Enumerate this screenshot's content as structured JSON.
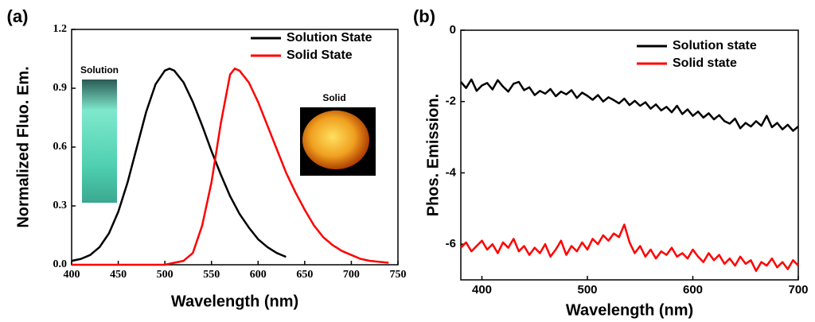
{
  "chart_data": [
    {
      "type": "line",
      "panel_label": "(a)",
      "x_label": "Wavelength (nm)",
      "y_label": "Normalized Fluo. Em.",
      "xlim": [
        400,
        750
      ],
      "xticks": [
        400,
        450,
        500,
        550,
        600,
        650,
        700,
        750
      ],
      "ylim": [
        0,
        1.2
      ],
      "yticks": [
        {
          "value": 0,
          "label": "0.0"
        },
        0.3,
        0.6,
        0.9,
        1.2
      ],
      "grid": false,
      "legend": "upper right",
      "annotations": [
        "Solution",
        "Solid"
      ],
      "series": [
        {
          "name": "Solution State",
          "color": "#000000",
          "x": [
            400,
            410,
            420,
            430,
            440,
            450,
            460,
            470,
            480,
            490,
            500,
            505,
            510,
            520,
            530,
            540,
            550,
            560,
            570,
            580,
            590,
            600,
            610,
            620,
            630
          ],
          "values": [
            0.02,
            0.03,
            0.05,
            0.09,
            0.16,
            0.27,
            0.42,
            0.6,
            0.78,
            0.92,
            0.99,
            1.0,
            0.99,
            0.93,
            0.83,
            0.71,
            0.58,
            0.46,
            0.35,
            0.26,
            0.19,
            0.13,
            0.09,
            0.06,
            0.04
          ]
        },
        {
          "name": "Solid State",
          "color": "#ff0000",
          "x": [
            400,
            420,
            440,
            460,
            480,
            500,
            510,
            520,
            530,
            540,
            550,
            560,
            570,
            575,
            580,
            590,
            600,
            610,
            620,
            630,
            640,
            650,
            660,
            670,
            680,
            690,
            700,
            710,
            720,
            740
          ],
          "values": [
            0,
            0,
            0,
            0,
            0,
            0,
            0.01,
            0.02,
            0.06,
            0.2,
            0.42,
            0.72,
            0.97,
            1.0,
            0.99,
            0.93,
            0.83,
            0.71,
            0.59,
            0.47,
            0.37,
            0.28,
            0.2,
            0.14,
            0.1,
            0.07,
            0.05,
            0.03,
            0.02,
            0.01
          ]
        }
      ]
    },
    {
      "type": "line",
      "panel_label": "(b)",
      "x_label": "Wavelength (nm)",
      "y_label": "Phos. Emission.",
      "xlim": [
        380,
        700
      ],
      "xticks": [
        400,
        500,
        600,
        700
      ],
      "ylim": [
        -7,
        0
      ],
      "yticks": [
        0,
        -2,
        -4,
        -6
      ],
      "grid": false,
      "legend": "upper right",
      "series": [
        {
          "name": "Solution state",
          "color": "#000000",
          "x": [
            380,
            385,
            390,
            395,
            400,
            405,
            410,
            415,
            420,
            425,
            430,
            435,
            440,
            445,
            450,
            455,
            460,
            465,
            470,
            475,
            480,
            485,
            490,
            495,
            500,
            505,
            510,
            515,
            520,
            525,
            530,
            535,
            540,
            545,
            550,
            555,
            560,
            565,
            570,
            575,
            580,
            585,
            590,
            595,
            600,
            605,
            610,
            615,
            620,
            625,
            630,
            635,
            640,
            645,
            650,
            655,
            660,
            665,
            670,
            675,
            680,
            685,
            690,
            695,
            700
          ],
          "values": [
            -1.45,
            -1.62,
            -1.38,
            -1.7,
            -1.55,
            -1.48,
            -1.66,
            -1.4,
            -1.58,
            -1.72,
            -1.5,
            -1.45,
            -1.68,
            -1.6,
            -1.82,
            -1.7,
            -1.78,
            -1.65,
            -1.85,
            -1.72,
            -1.8,
            -1.68,
            -1.9,
            -1.75,
            -1.84,
            -1.95,
            -1.82,
            -2.0,
            -1.88,
            -1.96,
            -2.05,
            -1.92,
            -2.1,
            -1.98,
            -2.12,
            -2.02,
            -2.2,
            -2.08,
            -2.25,
            -2.15,
            -2.3,
            -2.12,
            -2.35,
            -2.22,
            -2.4,
            -2.28,
            -2.45,
            -2.33,
            -2.5,
            -2.38,
            -2.55,
            -2.62,
            -2.48,
            -2.75,
            -2.6,
            -2.7,
            -2.55,
            -2.68,
            -2.4,
            -2.72,
            -2.6,
            -2.78,
            -2.65,
            -2.82,
            -2.7
          ]
        },
        {
          "name": "Solid state",
          "color": "#ff0000",
          "x": [
            380,
            385,
            390,
            395,
            400,
            405,
            410,
            415,
            420,
            425,
            430,
            435,
            440,
            445,
            450,
            455,
            460,
            465,
            470,
            475,
            480,
            485,
            490,
            495,
            500,
            505,
            510,
            515,
            520,
            525,
            530,
            535,
            540,
            545,
            550,
            555,
            560,
            565,
            570,
            575,
            580,
            585,
            590,
            595,
            600,
            605,
            610,
            615,
            620,
            625,
            630,
            635,
            640,
            645,
            650,
            655,
            660,
            665,
            670,
            675,
            680,
            685,
            690,
            695,
            700
          ],
          "values": [
            -6.1,
            -5.95,
            -6.2,
            -6.05,
            -5.9,
            -6.15,
            -6.0,
            -6.25,
            -5.95,
            -6.1,
            -5.85,
            -6.2,
            -6.05,
            -6.3,
            -6.1,
            -6.25,
            -6.0,
            -6.35,
            -6.15,
            -5.9,
            -6.3,
            -6.05,
            -6.2,
            -5.95,
            -6.15,
            -5.85,
            -6.0,
            -5.75,
            -5.9,
            -5.7,
            -5.8,
            -5.45,
            -5.95,
            -6.25,
            -6.05,
            -6.35,
            -6.15,
            -6.4,
            -6.2,
            -6.3,
            -6.1,
            -6.35,
            -6.25,
            -6.4,
            -6.15,
            -6.35,
            -6.5,
            -6.25,
            -6.45,
            -6.3,
            -6.55,
            -6.4,
            -6.6,
            -6.35,
            -6.55,
            -6.45,
            -6.75,
            -6.5,
            -6.6,
            -6.4,
            -6.65,
            -6.5,
            -6.7,
            -6.45,
            -6.6
          ]
        }
      ]
    }
  ]
}
